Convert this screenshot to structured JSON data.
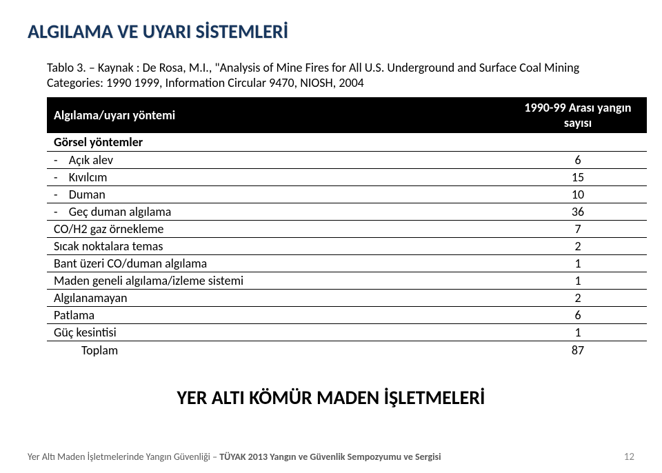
{
  "title": "ALGILAMA VE UYARI SİSTEMLERİ",
  "caption": "Tablo 3. – Kaynak : De Rosa, M.I., \"Analysis of Mine Fires for All U.S. Underground and Surface Coal Mining Categories: 1990 1999, Information Circular 9470, NIOSH, 2004",
  "table": {
    "header": {
      "c1": "Algılama/uyarı yöntemi",
      "c2": "1990-99 Arası yangın sayısı"
    },
    "section_label": "Görsel yöntemler",
    "dash_rows": [
      {
        "label": "Açık alev",
        "value": "6"
      },
      {
        "label": "Kıvılcım",
        "value": "15"
      },
      {
        "label": "Duman",
        "value": "10"
      },
      {
        "label": "Geç duman algılama",
        "value": "36"
      }
    ],
    "plain_rows": [
      {
        "label": "CO/H2 gaz örnekleme",
        "value": "7"
      },
      {
        "label": "Sıcak noktalara temas",
        "value": "2"
      },
      {
        "label": "Bant üzeri CO/duman algılama",
        "value": "1"
      },
      {
        "label": "Maden geneli algılama/izleme sistemi",
        "value": "1"
      },
      {
        "label": "Algılanamayan",
        "value": "2"
      },
      {
        "label": "Patlama",
        "value": "6"
      },
      {
        "label": "Güç kesintisi",
        "value": "1"
      }
    ],
    "total": {
      "label": "Toplam",
      "value": "87"
    }
  },
  "subtitle": "YER ALTI KÖMÜR MADEN İŞLETMELERİ",
  "footer": {
    "text_plain": "Yer Altı Maden İşletmelerinde Yangın Güvenliği – ",
    "text_bold": "TÜYAK 2013 Yangın ve Güvenlik Sempozyumu ve Sergisi",
    "page": "12"
  }
}
